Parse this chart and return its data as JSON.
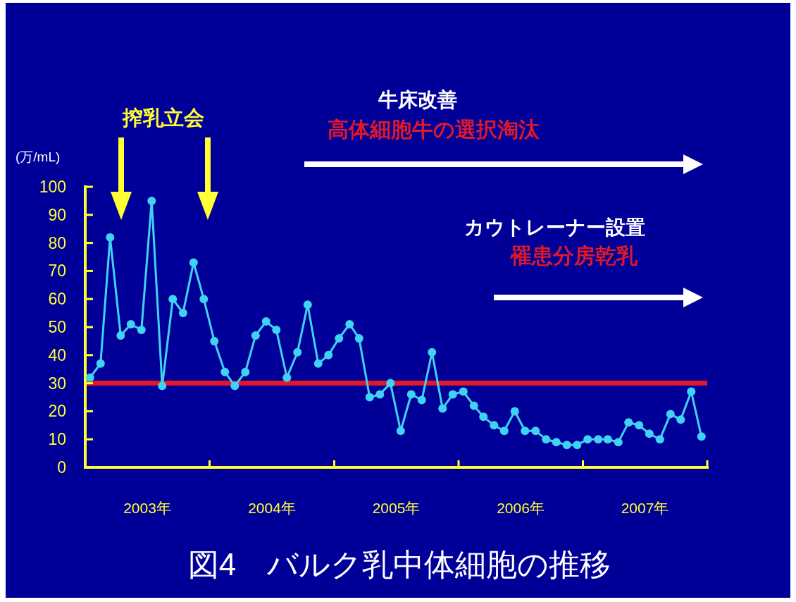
{
  "chart_data": {
    "type": "line",
    "title": "図4　バルク乳中体細胞の推移",
    "ylabel": "(万/mL)",
    "annotations": [
      "搾乳立会",
      "牛床改善",
      "高体細胞牛の選択淘汰",
      "カウトレーナー設置",
      "罹患分房乾乳"
    ],
    "x": [
      "2003-01-15",
      "2003-02-15",
      "2003-03-15",
      "2003-04-15",
      "2003-05-15",
      "2003-06-15",
      "2003-07-15",
      "2003-08-15",
      "2003-09-15",
      "2003-10-15",
      "2003-11-15",
      "2003-12-15",
      "2004-01-15",
      "2004-02-15",
      "2004-03-15",
      "2004-04-15",
      "2004-05-15",
      "2004-06-15",
      "2004-07-15",
      "2004-08-15",
      "2004-09-15",
      "2004-10-15",
      "2004-11-15",
      "2004-12-15",
      "2005-01-15",
      "2005-02-15",
      "2005-03-15",
      "2005-04-15",
      "2005-05-15",
      "2005-06-15",
      "2005-07-15",
      "2005-08-15",
      "2005-09-15",
      "2005-10-15",
      "2005-11-15",
      "2005-12-15",
      "2006-01-15",
      "2006-02-15",
      "2006-03-15",
      "2006-04-15",
      "2006-05-15",
      "2006-06-15",
      "2006-07-15",
      "2006-08-15",
      "2006-09-15",
      "2006-10-15",
      "2006-11-15",
      "2006-12-15",
      "2007-01-15",
      "2007-02-15",
      "2007-03-15",
      "2007-04-15",
      "2007-05-15",
      "2007-06-15",
      "2007-07-15",
      "2007-08-15",
      "2007-09-15",
      "2007-10-15",
      "2007-11-15",
      "2007-12-15"
    ],
    "series": [
      {
        "color": "#3fd2f2",
        "values": [
          32,
          37,
          82,
          47,
          51,
          49,
          95,
          29,
          60,
          55,
          73,
          60,
          45,
          34,
          29,
          34,
          47,
          52,
          49,
          32,
          41,
          58,
          37,
          40,
          46,
          51,
          46,
          25,
          26,
          30,
          13,
          26,
          24,
          41,
          21,
          26,
          27,
          22,
          18,
          15,
          13,
          20,
          13,
          13,
          10,
          9,
          8,
          8,
          10,
          10,
          10,
          9,
          16,
          15,
          12,
          10,
          19,
          17,
          27,
          11
        ]
      }
    ],
    "xlim": [
      "2003-01-01",
      "2008-01-01"
    ],
    "xticks": [
      {
        "value": "2003-01-01",
        "label": null
      },
      {
        "value": "2004-01-01",
        "label": null
      },
      {
        "value": "2005-01-01",
        "label": null
      },
      {
        "value": "2006-01-01",
        "label": null
      },
      {
        "value": "2007-01-01",
        "label": null
      },
      {
        "value": "2008-01-01",
        "label": null
      },
      {
        "value": "2003-07-02",
        "label": "2003年"
      },
      {
        "value": "2004-07-02",
        "label": "2004年"
      },
      {
        "value": "2005-07-02",
        "label": "2005年"
      },
      {
        "value": "2006-07-02",
        "label": "2006年"
      },
      {
        "value": "2007-07-02",
        "label": "2007年"
      }
    ],
    "ylim": [
      0,
      100
    ],
    "yticks": [
      0,
      10,
      20,
      30,
      40,
      50,
      60,
      70,
      80,
      90,
      100
    ],
    "ref_lines": [
      {
        "axis": "y",
        "value": 30,
        "color": "#e0182a"
      }
    ],
    "grid": false,
    "marker": "circle",
    "line_style": "solid"
  }
}
